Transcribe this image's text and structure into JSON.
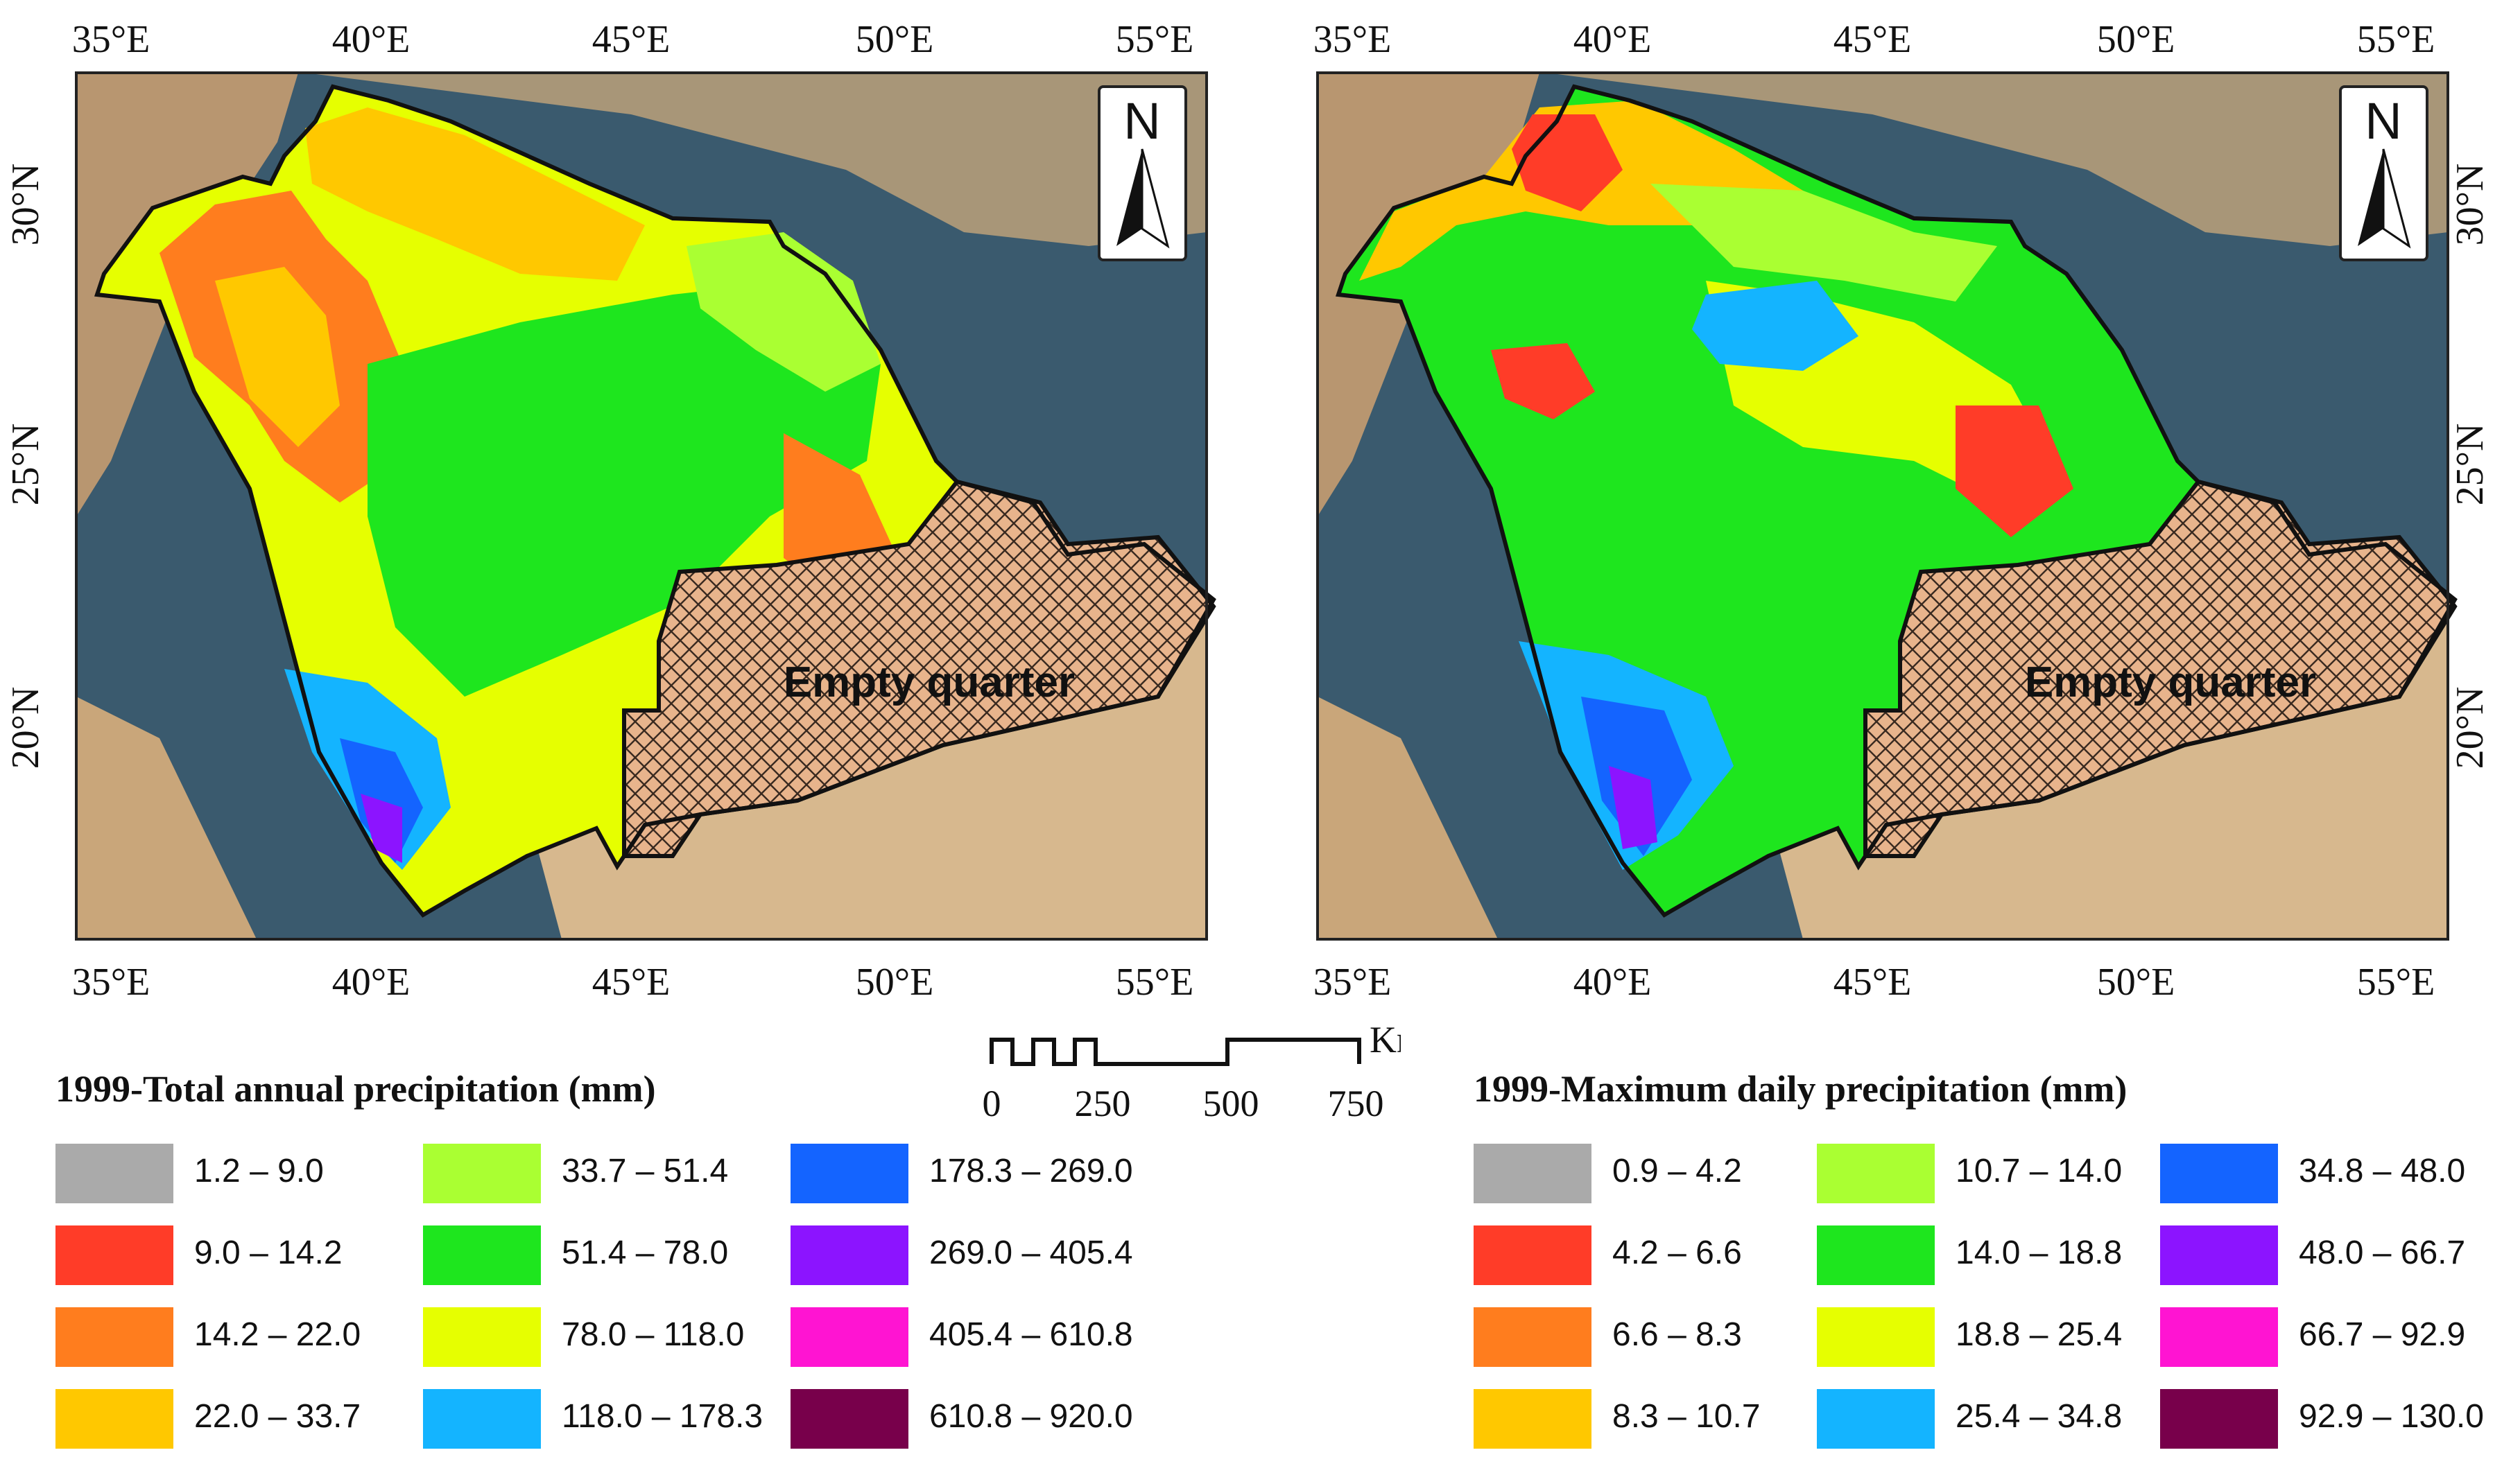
{
  "maps": [
    {
      "id": "total",
      "lon_ticks": [
        "35°E",
        "40°E",
        "45°E",
        "50°E",
        "55°E"
      ],
      "lat_ticks": [
        "30°N",
        "25°N",
        "20°N"
      ],
      "region_label": "Empty quarter",
      "north_arrow": "N"
    },
    {
      "id": "maximum",
      "lon_ticks": [
        "35°E",
        "40°E",
        "45°E",
        "50°E",
        "55°E"
      ],
      "lat_ticks": [
        "30°N",
        "25°N",
        "20°N"
      ],
      "region_label": "Empty quarter",
      "north_arrow": "N"
    }
  ],
  "scale_bar": {
    "unit": "Km",
    "labels": [
      "0",
      "250",
      "500",
      "750"
    ]
  },
  "legend_total": {
    "title": "1999-Total annual precipitation (mm)",
    "classes": [
      {
        "label": "1.2 – 9.0",
        "color": "#aaaaaa"
      },
      {
        "label": "9.0 – 14.2",
        "color": "#ff3c28"
      },
      {
        "label": "14.2 – 22.0",
        "color": "#ff7d1e"
      },
      {
        "label": "22.0 – 33.7",
        "color": "#ffc800"
      },
      {
        "label": "33.7 – 51.4",
        "color": "#aaff32"
      },
      {
        "label": "51.4 – 78.0",
        "color": "#1ee61e"
      },
      {
        "label": "78.0 – 118.0",
        "color": "#e6ff00"
      },
      {
        "label": "118.0 – 178.3",
        "color": "#14b4ff"
      },
      {
        "label": "178.3 – 269.0",
        "color": "#1464ff"
      },
      {
        "label": "269.0 – 405.4",
        "color": "#8c14ff"
      },
      {
        "label": "405.4 – 610.8",
        "color": "#ff14d2"
      },
      {
        "label": "610.8 – 920.0",
        "color": "#78004b"
      }
    ]
  },
  "legend_max": {
    "title": "1999-Maximum daily precipitation (mm)",
    "classes": [
      {
        "label": "0.9 – 4.2",
        "color": "#aaaaaa"
      },
      {
        "label": "4.2 – 6.6",
        "color": "#ff3c28"
      },
      {
        "label": "6.6 – 8.3",
        "color": "#ff7d1e"
      },
      {
        "label": "8.3 – 10.7",
        "color": "#ffc800"
      },
      {
        "label": "10.7 – 14.0",
        "color": "#aaff32"
      },
      {
        "label": "14.0 – 18.8",
        "color": "#1ee61e"
      },
      {
        "label": "18.8 – 25.4",
        "color": "#e6ff00"
      },
      {
        "label": "25.4 – 34.8",
        "color": "#14b4ff"
      },
      {
        "label": "34.8 – 48.0",
        "color": "#1464ff"
      },
      {
        "label": "48.0 – 66.7",
        "color": "#8c14ff"
      },
      {
        "label": "66.7 – 92.9",
        "color": "#ff14d2"
      },
      {
        "label": "92.9 – 130.0",
        "color": "#78004b"
      }
    ]
  }
}
